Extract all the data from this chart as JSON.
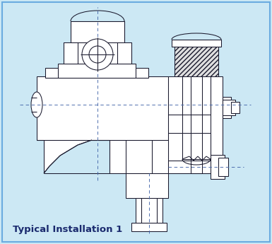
{
  "background_color": "#cce8f4",
  "border_color": "#6aabe0",
  "line_color": "#1a1a2e",
  "dash_color": "#4466aa",
  "text_label": "Typical Installation 1",
  "text_color": "#1a2a6e",
  "text_fontsize": 9.5,
  "fig_width": 3.85,
  "fig_height": 3.45,
  "dpi": 100,
  "lw": 0.75
}
